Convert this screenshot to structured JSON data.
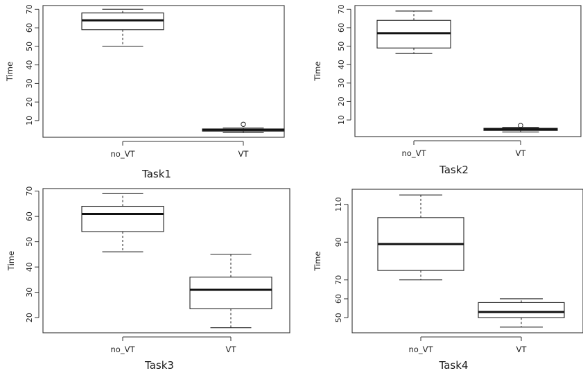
{
  "chart_data": [
    {
      "type": "boxplot",
      "title": "Task1",
      "ylabel": "Time",
      "ylim": [
        1,
        72
      ],
      "yticks": [
        10,
        20,
        30,
        40,
        50,
        60,
        70
      ],
      "categories": [
        "no_VT",
        "VT"
      ],
      "boxes": [
        {
          "category": "no_VT",
          "whisker_low": 50,
          "q1": 59,
          "median": 64,
          "q3": 68,
          "whisker_high": 70,
          "outliers": []
        },
        {
          "category": "VT",
          "whisker_low": 3.5,
          "q1": 4.3,
          "median": 5,
          "q3": 5.5,
          "whisker_high": 6,
          "outliers": [
            8
          ]
        }
      ]
    },
    {
      "type": "boxplot",
      "title": "Task2",
      "ylabel": "Time",
      "ylim": [
        1,
        72
      ],
      "yticks": [
        10,
        20,
        30,
        40,
        50,
        60,
        70
      ],
      "categories": [
        "no_VT",
        "VT"
      ],
      "boxes": [
        {
          "category": "no_VT",
          "whisker_low": 46,
          "q1": 49,
          "median": 57,
          "q3": 64,
          "whisker_high": 69,
          "outliers": []
        },
        {
          "category": "VT",
          "whisker_low": 3.5,
          "q1": 4.3,
          "median": 5,
          "q3": 5.5,
          "whisker_high": 6,
          "outliers": [
            7
          ]
        }
      ]
    },
    {
      "type": "boxplot",
      "title": "Task3",
      "ylabel": "Time",
      "ylim": [
        14,
        71
      ],
      "yticks": [
        20,
        30,
        40,
        50,
        60,
        70
      ],
      "categories": [
        "no_VT",
        "VT"
      ],
      "boxes": [
        {
          "category": "no_VT",
          "whisker_low": 46,
          "q1": 54,
          "median": 61,
          "q3": 64,
          "whisker_high": 69,
          "outliers": []
        },
        {
          "category": "VT",
          "whisker_low": 16,
          "q1": 23.5,
          "median": 31,
          "q3": 36,
          "whisker_high": 45,
          "outliers": []
        }
      ]
    },
    {
      "type": "boxplot",
      "title": "Task4",
      "ylabel": "Time",
      "ylim": [
        42,
        118
      ],
      "yticks": [
        50,
        60,
        70,
        90,
        110
      ],
      "categories": [
        "no_VT",
        "VT"
      ],
      "boxes": [
        {
          "category": "no_VT",
          "whisker_low": 70,
          "q1": 75,
          "median": 89,
          "q3": 103,
          "whisker_high": 115,
          "outliers": []
        },
        {
          "category": "VT",
          "whisker_low": 45,
          "q1": 50,
          "median": 53,
          "q3": 58,
          "whisker_high": 60,
          "outliers": []
        }
      ]
    }
  ]
}
